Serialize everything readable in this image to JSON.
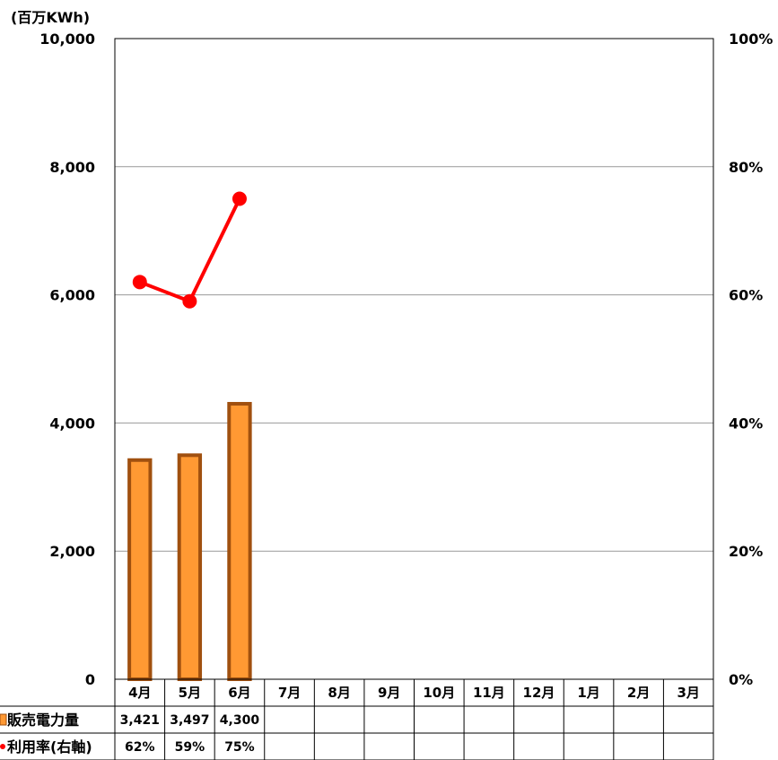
{
  "chart_data": {
    "type": "bar+line",
    "title": "",
    "y_unit_label": "(百万KWh)",
    "categories": [
      "4月",
      "5月",
      "6月",
      "7月",
      "8月",
      "9月",
      "10月",
      "11月",
      "12月",
      "1月",
      "2月",
      "3月"
    ],
    "series": [
      {
        "name": "販売電力量",
        "type": "bar",
        "axis": "left",
        "values": [
          3421,
          3497,
          4300,
          null,
          null,
          null,
          null,
          null,
          null,
          null,
          null,
          null
        ],
        "table_labels": [
          "3,421",
          "3,497",
          "4,300",
          "",
          "",
          "",
          "",
          "",
          "",
          "",
          "",
          ""
        ]
      },
      {
        "name": "利用率(右軸)",
        "type": "line",
        "axis": "right",
        "values": [
          62,
          59,
          75,
          null,
          null,
          null,
          null,
          null,
          null,
          null,
          null,
          null
        ],
        "table_labels": [
          "62%",
          "59%",
          "75%",
          "",
          "",
          "",
          "",
          "",
          "",
          "",
          "",
          ""
        ]
      }
    ],
    "left_axis": {
      "range": [
        0,
        10000
      ],
      "ticks": [
        0,
        2000,
        4000,
        6000,
        8000,
        10000
      ],
      "tick_labels": [
        "0",
        "2,000",
        "4,000",
        "6,000",
        "8,000",
        "10,000"
      ]
    },
    "right_axis": {
      "range": [
        0,
        100
      ],
      "ticks": [
        0,
        20,
        40,
        60,
        80,
        100
      ],
      "tick_labels": [
        "0%",
        "20%",
        "40%",
        "60%",
        "80%",
        "100%"
      ]
    },
    "grid": true,
    "legend": "data-table-below",
    "colors": {
      "bar_fill": "#FF9933",
      "bar_stroke": "#A0500F",
      "line": "#FF0000",
      "grid": "#999999",
      "axis": "#000000"
    }
  }
}
